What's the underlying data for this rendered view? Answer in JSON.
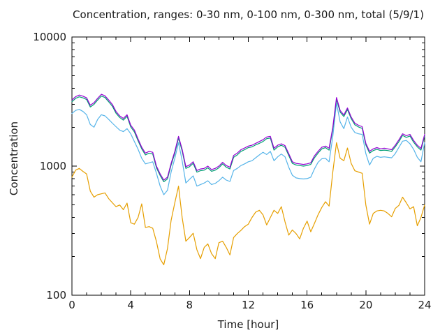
{
  "chart_data": {
    "type": "line",
    "title": "Concentration, ranges: 0-30 nm, 0-100 nm, 0-300 nm, total (5/9/1)",
    "xlabel": "Time [hour]",
    "ylabel": "Concentration",
    "xlim": [
      0,
      24
    ],
    "ylim": [
      100,
      10000
    ],
    "y_scale": "log",
    "grid": false,
    "legend": "none",
    "background": "#ffffff",
    "axis_color": "#000000",
    "text_color": "#1a1a1a",
    "x_major_ticks": [
      0,
      4,
      8,
      12,
      16,
      20,
      24
    ],
    "x_tick_labels": [
      "0",
      "4",
      "8",
      "12",
      "16",
      "20",
      "24"
    ],
    "x_minor_tick_step": 1,
    "y_major_ticks": [
      100,
      1000,
      10000
    ],
    "y_tick_labels": [
      "100",
      "1000",
      "10000"
    ],
    "x_start": 0,
    "x_step": 0.25,
    "series": [
      {
        "name": "0-30 nm",
        "color": "#e69f00",
        "values": [
          820,
          930,
          960,
          910,
          870,
          640,
          575,
          600,
          610,
          620,
          560,
          520,
          485,
          500,
          460,
          517,
          364,
          355,
          400,
          510,
          335,
          340,
          330,
          260,
          191,
          172,
          230,
          380,
          520,
          700,
          400,
          262,
          280,
          302,
          225,
          192,
          235,
          250,
          210,
          192,
          255,
          262,
          235,
          205,
          280,
          300,
          318,
          340,
          355,
          400,
          440,
          455,
          420,
          350,
          400,
          455,
          430,
          485,
          370,
          292,
          320,
          300,
          273,
          330,
          375,
          310,
          360,
          420,
          478,
          530,
          490,
          900,
          1520,
          1150,
          1100,
          1380,
          1050,
          920,
          900,
          880,
          500,
          355,
          430,
          450,
          455,
          450,
          430,
          405,
          470,
          497,
          575,
          520,
          466,
          485,
          345,
          400,
          500
        ]
      },
      {
        "name": "0-100 nm",
        "color": "#56b4e9",
        "values": [
          2560,
          2700,
          2750,
          2650,
          2500,
          2100,
          2000,
          2300,
          2500,
          2450,
          2300,
          2150,
          2020,
          1900,
          1850,
          1950,
          1780,
          1550,
          1350,
          1150,
          1040,
          1060,
          1080,
          880,
          700,
          600,
          650,
          900,
          1150,
          1520,
          1100,
          740,
          790,
          840,
          700,
          720,
          740,
          770,
          720,
          735,
          770,
          820,
          780,
          760,
          925,
          960,
          1010,
          1040,
          1080,
          1100,
          1160,
          1220,
          1280,
          1230,
          1300,
          1100,
          1180,
          1240,
          1180,
          980,
          850,
          810,
          800,
          795,
          800,
          820,
          950,
          1070,
          1140,
          1150,
          1080,
          1700,
          3080,
          2200,
          1950,
          2400,
          2000,
          1820,
          1780,
          1760,
          1250,
          1020,
          1150,
          1190,
          1170,
          1180,
          1170,
          1160,
          1250,
          1400,
          1560,
          1580,
          1490,
          1350,
          1170,
          1080,
          1520
        ]
      },
      {
        "name": "0-300 nm",
        "color": "#009e73",
        "values": [
          3150,
          3350,
          3440,
          3380,
          3280,
          2870,
          3010,
          3250,
          3490,
          3400,
          3150,
          2910,
          2570,
          2380,
          2270,
          2430,
          2010,
          1840,
          1570,
          1360,
          1220,
          1260,
          1240,
          970,
          845,
          757,
          795,
          1020,
          1260,
          1650,
          1310,
          960,
          990,
          1050,
          897,
          922,
          930,
          970,
          912,
          930,
          970,
          1040,
          980,
          950,
          1170,
          1220,
          1300,
          1340,
          1390,
          1410,
          1460,
          1500,
          1550,
          1630,
          1650,
          1330,
          1410,
          1450,
          1400,
          1210,
          1050,
          1020,
          1010,
          1000,
          1010,
          1030,
          1160,
          1260,
          1360,
          1390,
          1330,
          1940,
          3300,
          2620,
          2420,
          2740,
          2330,
          2090,
          2010,
          1960,
          1460,
          1260,
          1320,
          1350,
          1320,
          1330,
          1320,
          1300,
          1410,
          1550,
          1730,
          1670,
          1710,
          1530,
          1410,
          1330,
          1710
        ]
      },
      {
        "name": "total",
        "color": "#9400d3",
        "values": [
          3250,
          3450,
          3550,
          3480,
          3380,
          2960,
          3100,
          3350,
          3600,
          3500,
          3250,
          3000,
          2650,
          2450,
          2340,
          2500,
          2070,
          1900,
          1620,
          1400,
          1260,
          1300,
          1280,
          1000,
          870,
          780,
          820,
          1050,
          1300,
          1700,
          1350,
          990,
          1020,
          1080,
          925,
          950,
          960,
          1000,
          940,
          960,
          1000,
          1070,
          1010,
          980,
          1210,
          1260,
          1340,
          1380,
          1430,
          1450,
          1500,
          1550,
          1600,
          1680,
          1700,
          1375,
          1450,
          1490,
          1440,
          1250,
          1080,
          1050,
          1040,
          1030,
          1040,
          1060,
          1200,
          1300,
          1400,
          1430,
          1375,
          2000,
          3400,
          2700,
          2490,
          2820,
          2400,
          2150,
          2070,
          2020,
          1500,
          1300,
          1360,
          1390,
          1360,
          1375,
          1360,
          1340,
          1450,
          1600,
          1780,
          1720,
          1760,
          1580,
          1450,
          1370,
          1760
        ]
      }
    ]
  }
}
